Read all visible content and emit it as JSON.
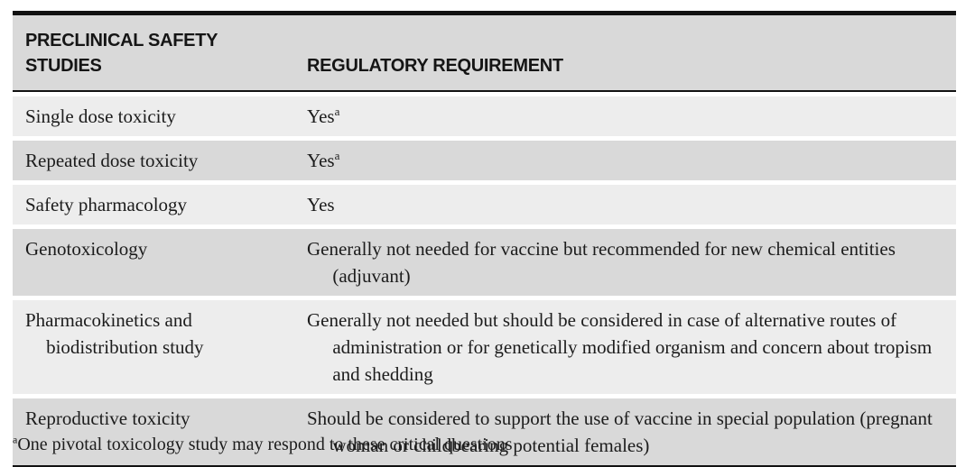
{
  "table": {
    "columns": [
      {
        "label": "PRECLINICAL SAFETY STUDIES"
      },
      {
        "label": "REGULATORY REQUIREMENT"
      }
    ],
    "rows": [
      {
        "study": "Single dose toxicity",
        "requirement": "Yes",
        "note_marker": "a"
      },
      {
        "study": "Repeated dose toxicity",
        "requirement": "Yes",
        "note_marker": "a"
      },
      {
        "study": "Safety pharmacology",
        "requirement": "Yes",
        "note_marker": ""
      },
      {
        "study": "Genotoxicology",
        "requirement": "Generally not needed for vaccine but recommended for new chemical entities (adjuvant)",
        "note_marker": ""
      },
      {
        "study": "Pharmacokinetics and biodistribution study",
        "requirement": "Generally not needed but should be considered in case of alternative routes of administration or for genetically modified organism and concern about tropism and shedding",
        "note_marker": ""
      },
      {
        "study": "Reproductive toxicity",
        "requirement": "Should be considered to support the use of vaccine in special population (pregnant woman or childbearing potential females)",
        "note_marker": ""
      }
    ],
    "footnote": {
      "marker": "a",
      "text": "One pivotal toxicology study may respond to these critical questions"
    }
  },
  "colors": {
    "header_bg": "#d9d9d9",
    "row_dark_bg": "#d9d9d9",
    "row_light_bg": "#ededed",
    "rule": "#121212",
    "text": "#1c1c1c"
  }
}
